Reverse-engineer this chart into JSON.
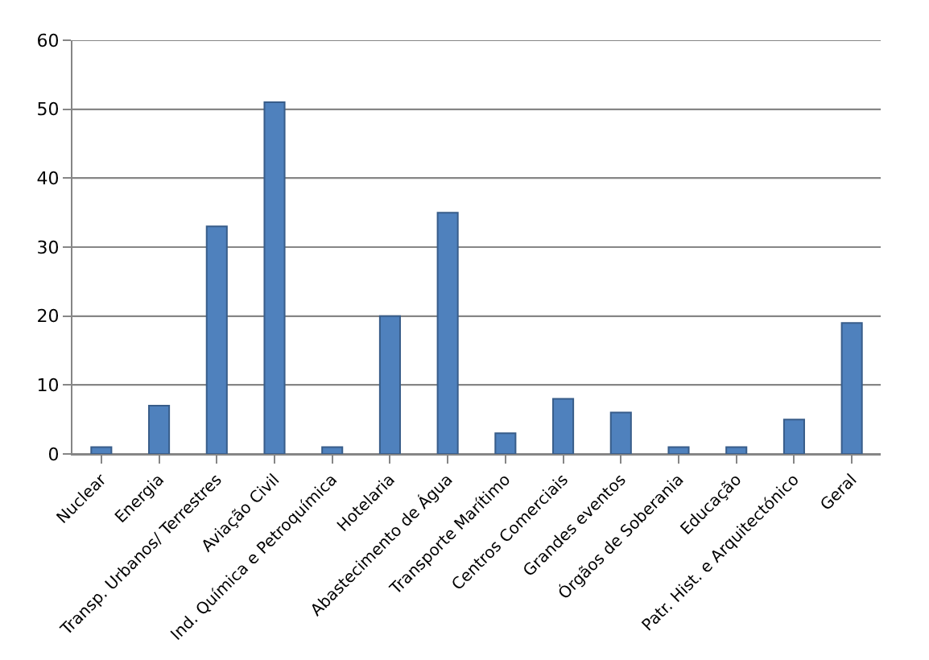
{
  "chart_data": {
    "type": "bar",
    "categories": [
      "Nuclear",
      "Energia",
      "Transp. Urbanos/ Terrestres",
      "Aviação Civil",
      "Ind. Química e Petroquímica",
      "Hotelaria",
      "Abastecimento de Água",
      "Transporte Marítimo",
      "Centros Comerciais",
      "Grandes eventos",
      "Órgãos de Soberania",
      "Educação",
      "Patr. Hist. e Arquitectónico",
      "Geral"
    ],
    "values": [
      1,
      7,
      33,
      51,
      1,
      20,
      35,
      3,
      8,
      6,
      1,
      1,
      5,
      19
    ],
    "color": "#4f81bd",
    "ylim": [
      0,
      60
    ],
    "yticks": [
      0,
      10,
      20,
      30,
      40,
      50,
      60
    ],
    "grid": "y"
  }
}
